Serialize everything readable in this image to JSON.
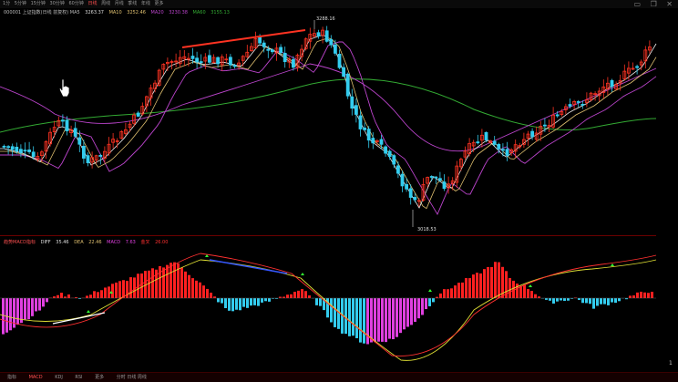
{
  "topbar": {
    "items": [
      "1分",
      "5分钟",
      "15分钟",
      "30分钟",
      "60分钟",
      "日线",
      "周线",
      "月线",
      "季线",
      "年线",
      "更多"
    ]
  },
  "indicator_line": {
    "label": "000001 上证指数(日线 前复权) MA5",
    "ma5": "3263.37",
    "ma10_label": "MA10",
    "ma10": "3252.46",
    "ma20_label": "MA20",
    "ma20": "3230.38",
    "ma60_label": "MA60",
    "ma60": "3155.13"
  },
  "macd_line": {
    "label": "趋势MACD指标",
    "dif_label": "DIFF",
    "dif": "35.46",
    "dea_label": "DEA",
    "dea": "22.46",
    "macd_label": "MACD",
    "macd": "7.63",
    "extra_label": "金叉",
    "extra": "26.00"
  },
  "annotations": {
    "high": "3288.16",
    "low": "3018.53"
  },
  "axis": {
    "right_tick": "1"
  },
  "bottombar": {
    "tabs": [
      "指标",
      "MACD",
      "KDJ",
      "RSI",
      "更多"
    ],
    "footer": "分时 日线 周线"
  },
  "window_controls": [
    "minimize",
    "restore",
    "close"
  ],
  "colors": {
    "up": "#ff3322",
    "down": "#33ccee",
    "ma5": "#f0f0f0",
    "ma10": "#e0c070",
    "ma20": "#bb44cc",
    "ma60": "#33aa33",
    "macd_pos": "#ff2020",
    "macd_neg_cyan": "#33ccee",
    "macd_neg_pink": "#e040e0"
  }
}
